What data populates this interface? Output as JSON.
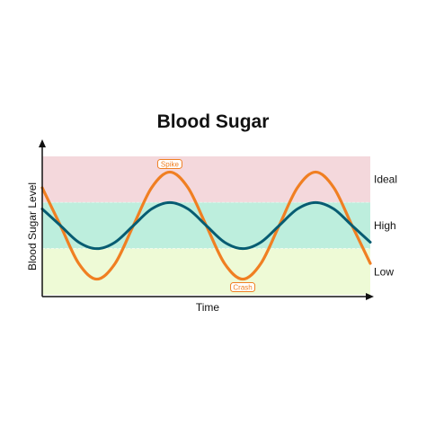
{
  "chart_data": {
    "type": "line",
    "title": "Blood Sugar",
    "xlabel": "Time",
    "ylabel": "Blood Sugar Level",
    "xlim": [
      0,
      2.25
    ],
    "ylim": [
      0,
      3
    ],
    "bands": [
      {
        "label": "Ideal",
        "from": 2,
        "to": 3,
        "color": "#f4d8dc"
      },
      {
        "label": "High",
        "from": 1,
        "to": 2,
        "color": "#bdeedd"
      },
      {
        "label": "Low",
        "from": 0,
        "to": 1,
        "color": "#eefad6"
      }
    ],
    "series": [
      {
        "color": "#f07f22",
        "x": [
          0,
          0.125,
          0.25,
          0.375,
          0.5,
          0.625,
          0.75,
          0.875,
          1,
          1.125,
          1.25,
          1.375,
          1.5,
          1.625,
          1.75,
          1.875,
          2,
          2.125,
          2.25
        ],
        "y": [
          2.32,
          1.5,
          0.68,
          0.34,
          0.68,
          1.5,
          2.32,
          2.66,
          2.32,
          1.5,
          0.68,
          0.34,
          0.68,
          1.5,
          2.32,
          2.66,
          2.32,
          1.5,
          0.68
        ]
      },
      {
        "color": "#075c72",
        "x": [
          0,
          0.125,
          0.25,
          0.375,
          0.5,
          0.625,
          0.75,
          0.875,
          1,
          1.125,
          1.25,
          1.375,
          1.5,
          1.625,
          1.75,
          1.875,
          2,
          2.125,
          2.25
        ],
        "y": [
          1.86,
          1.5,
          1.14,
          1.0,
          1.14,
          1.5,
          1.86,
          2.0,
          1.86,
          1.5,
          1.14,
          1.0,
          1.14,
          1.5,
          1.86,
          2.0,
          1.86,
          1.5,
          1.14
        ]
      }
    ],
    "annotations": [
      {
        "text": "Spike",
        "x": 0.875,
        "y": 2.66,
        "position": "above"
      },
      {
        "text": "Crash",
        "x": 1.375,
        "y": 0.34,
        "position": "below"
      }
    ],
    "grid": false,
    "legend": "none"
  }
}
